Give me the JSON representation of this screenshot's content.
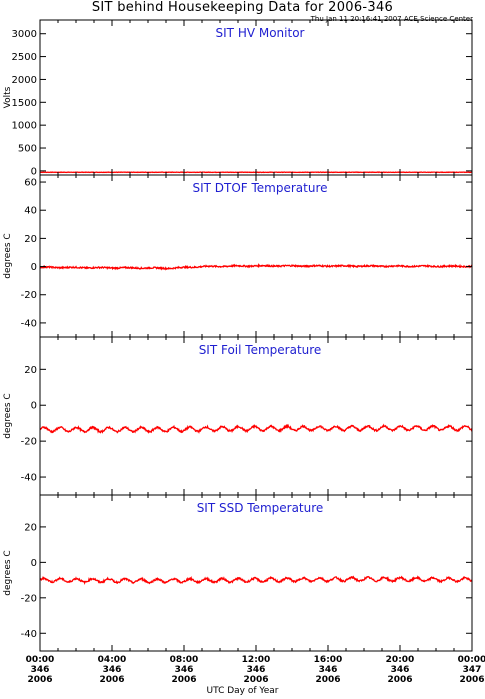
{
  "header": {
    "title": "SIT behind Housekeeping Data for 2006-346",
    "timestamp": "Thu Jan 11 20:16:41 2007 ACE Science Center",
    "xlabel": "UTC Day of Year"
  },
  "colors": {
    "data": "#ff0000",
    "panel_title": "#1f1fd0",
    "axis": "#000000"
  },
  "chart_data": [
    {
      "type": "line",
      "title": "SIT HV Monitor",
      "ylabel": "Volts",
      "ylim": [
        -90,
        3300
      ],
      "yticks": [
        0,
        500,
        1000,
        1500,
        2000,
        2500,
        3000
      ],
      "xlim": [
        0,
        24
      ],
      "series": [
        {
          "baseline": -30,
          "noise": 4,
          "osc_amp": 0,
          "osc_period_h": 1,
          "points": [
            [
              0,
              -30
            ],
            [
              24,
              -30
            ]
          ]
        }
      ]
    },
    {
      "type": "line",
      "title": "SIT DTOF Temperature",
      "ylabel": "degrees C",
      "ylim": [
        -50,
        65
      ],
      "yticks": [
        -40,
        -20,
        0,
        20,
        40,
        60
      ],
      "xlim": [
        0,
        24
      ],
      "series": [
        {
          "noise": 0.5,
          "osc_amp": 0.2,
          "osc_period_h": 1.5,
          "points": [
            [
              0,
              -0.5
            ],
            [
              3,
              -0.8
            ],
            [
              6,
              -1.0
            ],
            [
              7.2,
              -1.2
            ],
            [
              9,
              0
            ],
            [
              11,
              0.4
            ],
            [
              12,
              0.5
            ],
            [
              16,
              0.4
            ],
            [
              20,
              0.3
            ],
            [
              24,
              0.2
            ]
          ]
        }
      ]
    },
    {
      "type": "line",
      "title": "SIT Foil Temperature",
      "ylabel": "degrees C",
      "ylim": [
        -50,
        38
      ],
      "yticks": [
        -40,
        -20,
        0,
        20
      ],
      "xlim": [
        0,
        24
      ],
      "series": [
        {
          "noise": 0.5,
          "osc_amp": 1.2,
          "osc_period_h": 0.9,
          "points": [
            [
              0,
              -13.5
            ],
            [
              6,
              -13.6
            ],
            [
              12,
              -13
            ],
            [
              18,
              -12.8
            ],
            [
              24,
              -12.8
            ]
          ]
        }
      ]
    },
    {
      "type": "line",
      "title": "SIT SSD Temperature",
      "ylabel": "degrees C",
      "ylim": [
        -50,
        38
      ],
      "yticks": [
        -40,
        -20,
        0,
        20
      ],
      "xlim": [
        0,
        24
      ],
      "series": [
        {
          "noise": 0.5,
          "osc_amp": 1.0,
          "osc_period_h": 0.9,
          "points": [
            [
              0,
              -10
            ],
            [
              6,
              -10.4
            ],
            [
              12,
              -10
            ],
            [
              18,
              -9.5
            ],
            [
              24,
              -9.8
            ]
          ]
        }
      ]
    }
  ],
  "xticks": [
    {
      "time": "00:00",
      "doy": "346",
      "year": "2006",
      "hour": 0
    },
    {
      "time": "04:00",
      "doy": "346",
      "year": "2006",
      "hour": 4
    },
    {
      "time": "08:00",
      "doy": "346",
      "year": "2006",
      "hour": 8
    },
    {
      "time": "12:00",
      "doy": "346",
      "year": "2006",
      "hour": 12
    },
    {
      "time": "16:00",
      "doy": "346",
      "year": "2006",
      "hour": 16
    },
    {
      "time": "20:00",
      "doy": "346",
      "year": "2006",
      "hour": 20
    },
    {
      "time": "00:00",
      "doy": "347",
      "year": "2006",
      "hour": 24
    }
  ]
}
